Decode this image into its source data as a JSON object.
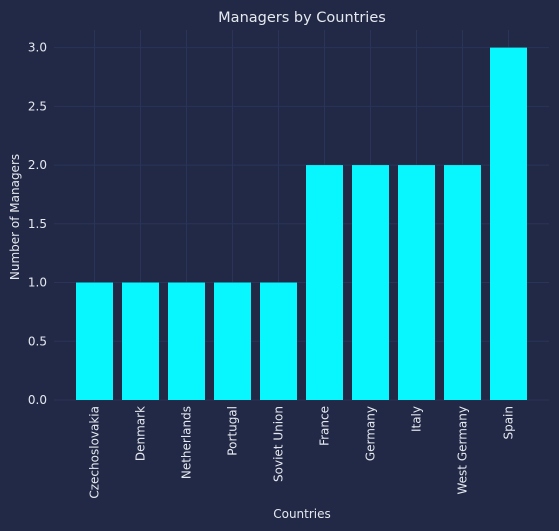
{
  "chart_data": {
    "type": "bar",
    "title": "Managers by Countries",
    "xlabel": "Countries",
    "ylabel": "Number of Managers",
    "categories": [
      "Czechoslovakia",
      "Denmark",
      "Netherlands",
      "Portugal",
      "Soviet Union",
      "France",
      "Germany",
      "Italy",
      "West Germany",
      "Spain"
    ],
    "values": [
      1,
      1,
      1,
      1,
      1,
      2,
      2,
      2,
      2,
      3
    ],
    "yticks": [
      "0.0",
      "0.5",
      "1.0",
      "1.5",
      "2.0",
      "2.5",
      "3.0"
    ],
    "ylim": [
      0,
      3.15
    ],
    "grid": true,
    "legend": "none",
    "colors": {
      "background": "#212946",
      "bar": "#08F7FE",
      "grid": "#2A3459",
      "text": "#E6E8EF"
    }
  }
}
